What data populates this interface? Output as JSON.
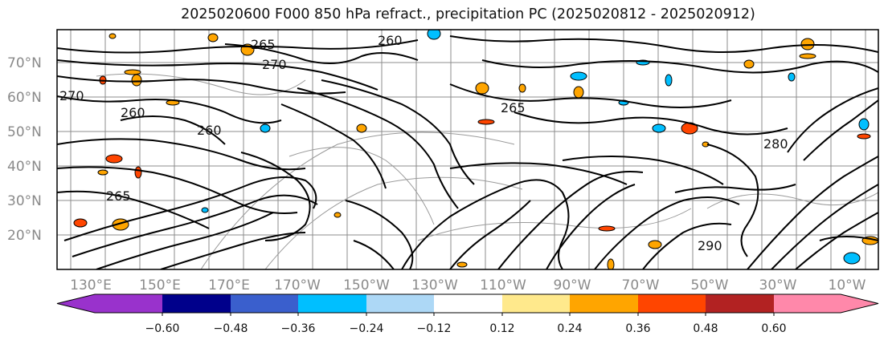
{
  "title": "2025020600 F000 850 hPa refract., precipitation PC (2025020812 - 2025020912)",
  "map": {
    "lat_labels": [
      "70°N",
      "60°N",
      "50°N",
      "40°N",
      "30°N",
      "20°N"
    ],
    "lon_labels": [
      "130°E",
      "150°E",
      "170°E",
      "170°W",
      "150°W",
      "130°W",
      "110°W",
      "90°W",
      "70°W",
      "50°W",
      "30°W",
      "10°W"
    ],
    "contour_labels": [
      "265",
      "260",
      "270",
      "260",
      "265",
      "270",
      "260",
      "265",
      "280",
      "290"
    ],
    "colors": {
      "contour": "#000000",
      "grid": "#8c8c8c",
      "orange_fill": "#ffa500",
      "red_fill": "#ff4500",
      "cyan_fill": "#00bfff"
    }
  },
  "colorbar": {
    "ticks": [
      "−0.60",
      "−0.48",
      "−0.36",
      "−0.24",
      "−0.12",
      "0.12",
      "0.24",
      "0.36",
      "0.48",
      "0.60"
    ],
    "colors": [
      "#9932cc",
      "#00008b",
      "#3a5fcd",
      "#00bfff",
      "#add8f6",
      "#ffffff",
      "#ffe98c",
      "#ffa500",
      "#ff4500",
      "#b22222",
      "#ff88aa"
    ]
  }
}
